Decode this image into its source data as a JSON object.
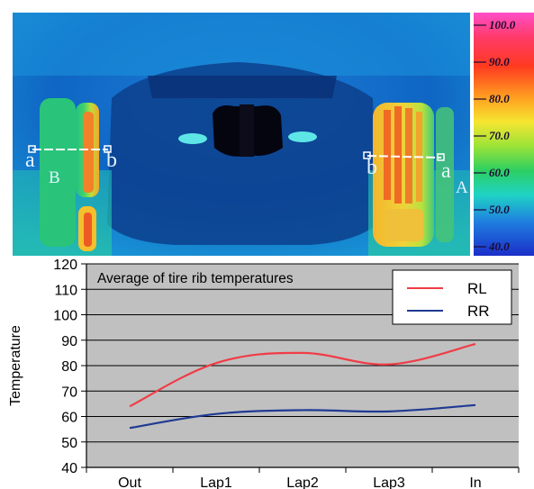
{
  "thermal_image": {
    "annotations": {
      "left_a": "a",
      "left_B": "B",
      "left_b": "b",
      "right_b": "b",
      "right_a": "a",
      "right_A": "A"
    },
    "scale_labels": [
      "100.0",
      "90.0",
      "80.0",
      "70.0",
      "60.0",
      "50.0",
      "40.0"
    ],
    "colors": {
      "cold": "#0a1a66",
      "cool": "#0f7fd0",
      "mid": "#3bd1a8",
      "warm": "#f3c23a",
      "hot": "#e8301e"
    }
  },
  "chart_data": {
    "type": "line",
    "title": "Average of tire rib temperatures",
    "ylabel": "Temperature",
    "xlabel": "",
    "categories": [
      "Out",
      "Lap1",
      "Lap2",
      "Lap3",
      "In"
    ],
    "yticks": [
      "40",
      "50",
      "60",
      "70",
      "80",
      "90",
      "100",
      "110",
      "120"
    ],
    "ylim": [
      40,
      120
    ],
    "grid": true,
    "legend_position": "top-right",
    "series": [
      {
        "name": "RL",
        "color": "#f03c46",
        "values": [
          64,
          81,
          85,
          80.5,
          88.5
        ]
      },
      {
        "name": "RR",
        "color": "#1f3a93",
        "values": [
          55.5,
          61,
          62.5,
          62,
          64.5
        ]
      }
    ]
  }
}
